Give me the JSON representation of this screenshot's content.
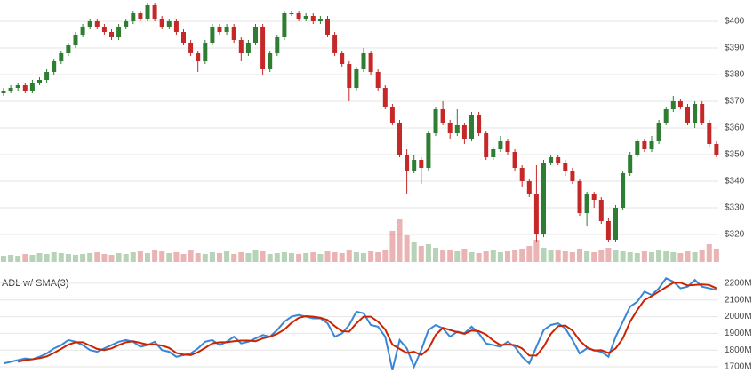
{
  "chart_data": [
    {
      "type": "candlestick",
      "up_color": "#2e7d32",
      "down_color": "#c62828",
      "ylim": [
        312,
        408
      ],
      "yticks": [
        {
          "value": 320,
          "label": "$320"
        },
        {
          "value": 330,
          "label": "$330"
        },
        {
          "value": 340,
          "label": "$340"
        },
        {
          "value": 350,
          "label": "$350"
        },
        {
          "value": 360,
          "label": "$360"
        },
        {
          "value": 370,
          "label": "$370"
        },
        {
          "value": 380,
          "label": "$380"
        },
        {
          "value": 390,
          "label": "$390"
        },
        {
          "value": 400,
          "label": "$400"
        }
      ],
      "grid": true,
      "open": [
        373,
        374,
        375,
        376,
        374,
        377,
        378,
        381,
        385,
        388,
        391,
        395,
        398,
        400,
        398,
        396,
        394,
        398,
        400,
        403,
        401,
        406,
        401,
        398,
        400,
        396,
        392,
        388,
        385,
        392,
        398,
        396,
        398,
        393,
        388,
        392,
        398,
        382,
        388,
        394,
        403,
        403,
        401,
        402,
        400,
        401,
        395,
        388,
        384,
        375,
        382,
        388,
        381,
        375,
        368,
        362,
        350,
        344,
        348,
        345,
        358,
        367,
        362,
        358,
        361,
        356,
        365,
        358,
        349,
        352,
        355,
        351,
        345,
        340,
        335,
        320,
        347,
        349,
        347,
        344,
        340,
        328,
        335,
        333,
        325,
        318,
        330,
        343,
        350,
        355,
        352,
        355,
        362,
        367,
        370,
        368,
        362,
        369,
        362,
        354
      ],
      "high": [
        375,
        376,
        377,
        377,
        378,
        379,
        382,
        386,
        389,
        392,
        396,
        399,
        401,
        401,
        399,
        397,
        399,
        401,
        404,
        404,
        407,
        407,
        402,
        401,
        401,
        397,
        393,
        389,
        393,
        399,
        399,
        399,
        399,
        394,
        393,
        399,
        399,
        389,
        395,
        404,
        404,
        404,
        403,
        403,
        402,
        402,
        396,
        389,
        385,
        383,
        390,
        389,
        382,
        376,
        369,
        363,
        352,
        350,
        349,
        359,
        368,
        370,
        363,
        367,
        362,
        366,
        366,
        359,
        353,
        357,
        356,
        352,
        346,
        341,
        346,
        348,
        350,
        350,
        348,
        345,
        341,
        336,
        336,
        334,
        326,
        331,
        344,
        351,
        356,
        356,
        357,
        363,
        368,
        372,
        371,
        369,
        370,
        370,
        363,
        355
      ],
      "low": [
        372,
        373,
        374,
        373,
        373,
        376,
        377,
        380,
        384,
        387,
        390,
        394,
        397,
        397,
        395,
        393,
        393,
        397,
        399,
        400,
        400,
        400,
        397,
        397,
        395,
        391,
        387,
        381,
        384,
        391,
        395,
        395,
        392,
        385,
        387,
        391,
        380,
        381,
        387,
        393,
        402,
        400,
        400,
        399,
        399,
        394,
        387,
        383,
        370,
        374,
        381,
        380,
        374,
        367,
        361,
        349,
        335,
        343,
        339,
        344,
        357,
        361,
        356,
        357,
        354,
        355,
        357,
        348,
        348,
        351,
        350,
        344,
        338,
        334,
        317,
        319,
        346,
        346,
        342,
        339,
        327,
        323,
        330,
        324,
        317,
        317,
        329,
        342,
        349,
        351,
        351,
        354,
        361,
        366,
        367,
        361,
        360,
        361,
        353,
        349
      ],
      "close": [
        374,
        375,
        376,
        374,
        377,
        378,
        381,
        385,
        388,
        391,
        395,
        398,
        400,
        398,
        396,
        394,
        398,
        400,
        403,
        401,
        406,
        401,
        398,
        400,
        396,
        392,
        388,
        385,
        392,
        398,
        396,
        398,
        393,
        388,
        392,
        398,
        382,
        388,
        394,
        403,
        403,
        401,
        402,
        400,
        401,
        395,
        388,
        384,
        375,
        382,
        388,
        381,
        375,
        368,
        362,
        350,
        344,
        348,
        345,
        358,
        367,
        362,
        358,
        361,
        356,
        365,
        358,
        349,
        352,
        355,
        351,
        345,
        340,
        335,
        320,
        347,
        349,
        347,
        344,
        340,
        328,
        335,
        333,
        325,
        318,
        330,
        343,
        350,
        355,
        352,
        355,
        362,
        367,
        370,
        368,
        362,
        369,
        362,
        354,
        350
      ],
      "volume": {
        "ylim": [
          0,
          100
        ],
        "values": [
          7,
          8,
          7,
          9,
          8,
          10,
          9,
          11,
          10,
          9,
          8,
          9,
          10,
          11,
          9,
          8,
          10,
          9,
          11,
          12,
          10,
          14,
          12,
          10,
          11,
          9,
          13,
          10,
          9,
          11,
          10,
          12,
          9,
          11,
          10,
          13,
          12,
          9,
          10,
          11,
          10,
          9,
          10,
          11,
          9,
          12,
          11,
          10,
          14,
          11,
          10,
          12,
          11,
          13,
          35,
          48,
          30,
          22,
          18,
          20,
          16,
          14,
          13,
          12,
          15,
          11,
          10,
          12,
          14,
          11,
          12,
          13,
          15,
          18,
          25,
          16,
          14,
          13,
          12,
          11,
          15,
          12,
          11,
          13,
          16,
          14,
          12,
          11,
          10,
          12,
          11,
          13,
          12,
          11,
          10,
          12,
          11,
          14,
          20,
          15
        ]
      }
    },
    {
      "type": "line",
      "title": "ADL w/ SMA(3)",
      "ylim": [
        1663,
        2274
      ],
      "yticks": [
        {
          "value": 1700,
          "label": "1700M"
        },
        {
          "value": 1800,
          "label": "1800M"
        },
        {
          "value": 1900,
          "label": "1900M"
        },
        {
          "value": 2000,
          "label": "2000M"
        },
        {
          "value": 2100,
          "label": "2100M"
        },
        {
          "value": 2200,
          "label": "2200M"
        }
      ],
      "grid": true,
      "series": [
        {
          "color": "#3a86d6",
          "values": [
            1720,
            1730,
            1740,
            1750,
            1745,
            1760,
            1780,
            1810,
            1830,
            1860,
            1850,
            1830,
            1800,
            1790,
            1810,
            1830,
            1850,
            1860,
            1850,
            1820,
            1830,
            1850,
            1800,
            1790,
            1760,
            1770,
            1780,
            1810,
            1850,
            1860,
            1830,
            1850,
            1880,
            1840,
            1850,
            1870,
            1890,
            1880,
            1920,
            1970,
            2000,
            2010,
            2000,
            1990,
            1990,
            1960,
            1880,
            1900,
            1950,
            2030,
            2020,
            1950,
            1940,
            1880,
            1680,
            1860,
            1810,
            1700,
            1800,
            1920,
            1950,
            1930,
            1880,
            1910,
            1900,
            1940,
            1900,
            1840,
            1830,
            1820,
            1850,
            1820,
            1760,
            1720,
            1820,
            1920,
            1950,
            1960,
            1930,
            1860,
            1780,
            1810,
            1800,
            1790,
            1760,
            1880,
            1970,
            2060,
            2090,
            2150,
            2130,
            2170,
            2230,
            2210,
            2170,
            2180,
            2220,
            2180,
            2170,
            2160
          ]
        },
        {
          "color": "#cc2200",
          "values": [
            null,
            null,
            1730,
            1740,
            1745,
            1752,
            1762,
            1783,
            1807,
            1833,
            1847,
            1847,
            1827,
            1807,
            1800,
            1810,
            1830,
            1847,
            1853,
            1843,
            1833,
            1833,
            1827,
            1813,
            1783,
            1773,
            1770,
            1787,
            1813,
            1840,
            1847,
            1847,
            1853,
            1857,
            1857,
            1853,
            1870,
            1880,
            1897,
            1923,
            1963,
            1993,
            2003,
            2000,
            1993,
            1980,
            1943,
            1913,
            1910,
            1960,
            2000,
            2000,
            1970,
            1923,
            1833,
            1807,
            1783,
            1790,
            1770,
            1807,
            1890,
            1933,
            1920,
            1907,
            1897,
            1917,
            1913,
            1893,
            1857,
            1830,
            1833,
            1830,
            1810,
            1767,
            1767,
            1820,
            1897,
            1943,
            1947,
            1917,
            1857,
            1817,
            1797,
            1800,
            1783,
            1810,
            1870,
            1970,
            2040,
            2100,
            2123,
            2150,
            2177,
            2203,
            2203,
            2187,
            2190,
            2193,
            2190,
            2170
          ]
        }
      ]
    }
  ]
}
